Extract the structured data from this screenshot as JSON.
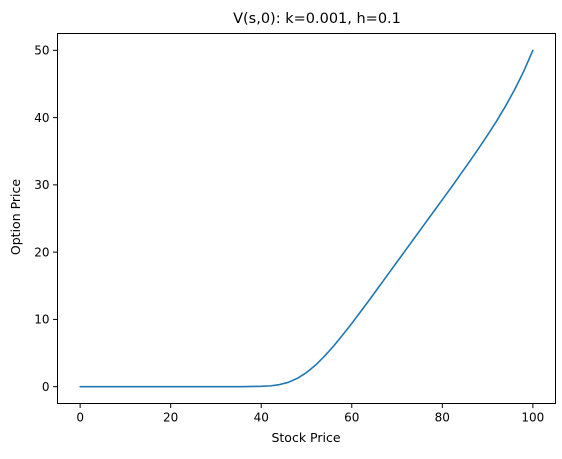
{
  "chart_data": {
    "type": "line",
    "title": "V(s,0): k=0.001, h=0.1",
    "xlabel": "Stock Price",
    "ylabel": "Option Price",
    "xlim": [
      -5,
      105
    ],
    "ylim": [
      -2.5,
      52.5
    ],
    "xticks": [
      0,
      20,
      40,
      60,
      80,
      100
    ],
    "yticks": [
      0,
      10,
      20,
      30,
      40,
      50
    ],
    "grid": false,
    "series": [
      {
        "name": "",
        "color": "#1f77b4",
        "x": [
          0,
          5,
          10,
          15,
          20,
          25,
          30,
          35,
          40,
          42,
          44,
          46,
          48,
          50,
          52,
          54,
          56,
          58,
          60,
          62,
          64,
          66,
          68,
          70,
          72,
          74,
          76,
          78,
          80,
          82,
          84,
          86,
          88,
          90,
          92,
          94,
          96,
          98,
          100
        ],
        "y": [
          0,
          0,
          0,
          0,
          0,
          0,
          0,
          0,
          0.05,
          0.12,
          0.3,
          0.65,
          1.25,
          2.1,
          3.2,
          4.55,
          6.05,
          7.7,
          9.4,
          11.2,
          13.0,
          14.85,
          16.7,
          18.55,
          20.4,
          22.25,
          24.1,
          25.95,
          27.8,
          29.65,
          31.55,
          33.45,
          35.4,
          37.4,
          39.5,
          41.75,
          44.2,
          46.9,
          50.0
        ]
      }
    ]
  }
}
